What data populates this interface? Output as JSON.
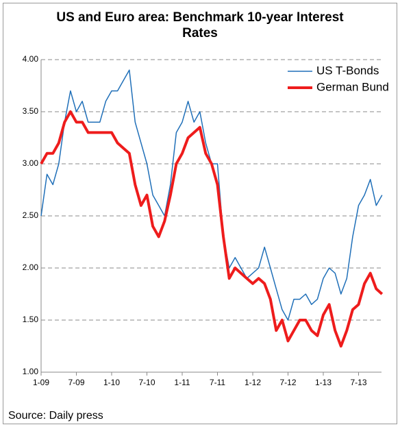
{
  "chart_data": {
    "type": "line",
    "title": "US and Euro area: Benchmark 10-year Interest Rates",
    "source": "Source: Daily press",
    "x": [
      "2009-01",
      "2009-02",
      "2009-03",
      "2009-04",
      "2009-05",
      "2009-06",
      "2009-07",
      "2009-08",
      "2009-09",
      "2009-10",
      "2009-11",
      "2009-12",
      "2010-01",
      "2010-02",
      "2010-03",
      "2010-04",
      "2010-05",
      "2010-06",
      "2010-07",
      "2010-08",
      "2010-09",
      "2010-10",
      "2010-11",
      "2010-12",
      "2011-01",
      "2011-02",
      "2011-03",
      "2011-04",
      "2011-05",
      "2011-06",
      "2011-07",
      "2011-08",
      "2011-09",
      "2011-10",
      "2011-11",
      "2011-12",
      "2012-01",
      "2012-02",
      "2012-03",
      "2012-04",
      "2012-05",
      "2012-06",
      "2012-07",
      "2012-08",
      "2012-09",
      "2012-10",
      "2012-11",
      "2012-12",
      "2013-01",
      "2013-02",
      "2013-03",
      "2013-04",
      "2013-05",
      "2013-06",
      "2013-07",
      "2013-08",
      "2013-09",
      "2013-10",
      "2013-11"
    ],
    "series": [
      {
        "name": "US T-Bonds",
        "color": "#1f6fb8",
        "values": [
          2.5,
          2.9,
          2.8,
          3.0,
          3.4,
          3.7,
          3.5,
          3.6,
          3.4,
          3.4,
          3.4,
          3.6,
          3.7,
          3.7,
          3.8,
          3.9,
          3.4,
          3.2,
          3.0,
          2.7,
          2.6,
          2.5,
          2.8,
          3.3,
          3.4,
          3.6,
          3.4,
          3.5,
          3.2,
          3.0,
          3.0,
          2.3,
          2.0,
          2.1,
          2.0,
          1.9,
          1.95,
          2.0,
          2.2,
          2.0,
          1.8,
          1.6,
          1.5,
          1.7,
          1.7,
          1.75,
          1.65,
          1.7,
          1.9,
          2.0,
          1.95,
          1.75,
          1.9,
          2.3,
          2.6,
          2.7,
          2.85,
          2.6,
          2.7
        ]
      },
      {
        "name": "German Bund",
        "color": "#ee1c1c",
        "values": [
          3.0,
          3.1,
          3.1,
          3.2,
          3.4,
          3.5,
          3.4,
          3.4,
          3.3,
          3.3,
          3.3,
          3.3,
          3.3,
          3.2,
          3.15,
          3.1,
          2.8,
          2.6,
          2.7,
          2.4,
          2.3,
          2.45,
          2.7,
          3.0,
          3.1,
          3.25,
          3.3,
          3.35,
          3.1,
          3.0,
          2.8,
          2.3,
          1.9,
          2.0,
          1.95,
          1.9,
          1.85,
          1.9,
          1.85,
          1.7,
          1.4,
          1.5,
          1.3,
          1.4,
          1.5,
          1.5,
          1.4,
          1.35,
          1.55,
          1.65,
          1.4,
          1.25,
          1.4,
          1.6,
          1.65,
          1.85,
          1.95,
          1.8,
          1.75
        ]
      }
    ],
    "xticks": [
      {
        "value": "2009-01",
        "label": "1-09"
      },
      {
        "value": "2009-07",
        "label": "7-09"
      },
      {
        "value": "2010-01",
        "label": "1-10"
      },
      {
        "value": "2010-07",
        "label": "7-10"
      },
      {
        "value": "2011-01",
        "label": "1-11"
      },
      {
        "value": "2011-07",
        "label": "7-11"
      },
      {
        "value": "2012-01",
        "label": "1-12"
      },
      {
        "value": "2012-07",
        "label": "7-12"
      },
      {
        "value": "2013-01",
        "label": "1-13"
      },
      {
        "value": "2013-07",
        "label": "7-13"
      }
    ],
    "ylim": [
      1,
      4
    ],
    "yticks": [
      {
        "value": 1,
        "label": "1.00"
      },
      {
        "value": 1.5,
        "label": "1.50"
      },
      {
        "value": 2,
        "label": "2.00"
      },
      {
        "value": 2.5,
        "label": "2.50"
      },
      {
        "value": 3,
        "label": "3.00"
      },
      {
        "value": 3.5,
        "label": "3.50"
      },
      {
        "value": 4,
        "label": "4.00"
      }
    ],
    "grid": true,
    "legend": "top-right"
  }
}
